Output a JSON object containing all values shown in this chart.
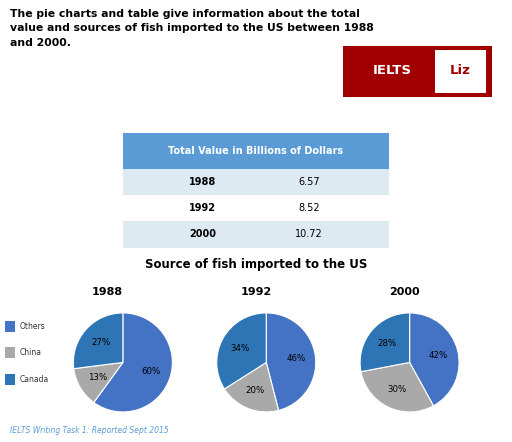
{
  "title_text": "The pie charts and table give information about the total\nvalue and sources of fish imported to the US between 1988\nand 2000.",
  "table_header": "Total Value in Billions of Dollars",
  "table_rows": [
    [
      "1988",
      "6.57"
    ],
    [
      "1992",
      "8.52"
    ],
    [
      "2000",
      "10.72"
    ]
  ],
  "pie_title": "Source of fish imported to the US",
  "pie_years": [
    "1988",
    "1992",
    "2000"
  ],
  "pie_data": [
    [
      60,
      13,
      27
    ],
    [
      46,
      20,
      34
    ],
    [
      42,
      30,
      28
    ]
  ],
  "pie_labels": [
    [
      "60%",
      "13%",
      "27%"
    ],
    [
      "46%",
      "20%",
      "34%"
    ],
    [
      "42%",
      "30%",
      "28%"
    ]
  ],
  "legend_labels": [
    "Others",
    "China",
    "Canada"
  ],
  "colors_others": "#4472C4",
  "colors_china": "#A9A9A9",
  "colors_canada": "#2E75B6",
  "footer_text": "IELTS Writing Task 1: Reported Sept 2015",
  "table_header_bg": "#5B9BD5",
  "table_row_bg_odd": "#DEEAF1",
  "table_row_bg_even": "#FFFFFF",
  "ielts_bg": "#A00000",
  "bg_color": "#FFFFFF"
}
